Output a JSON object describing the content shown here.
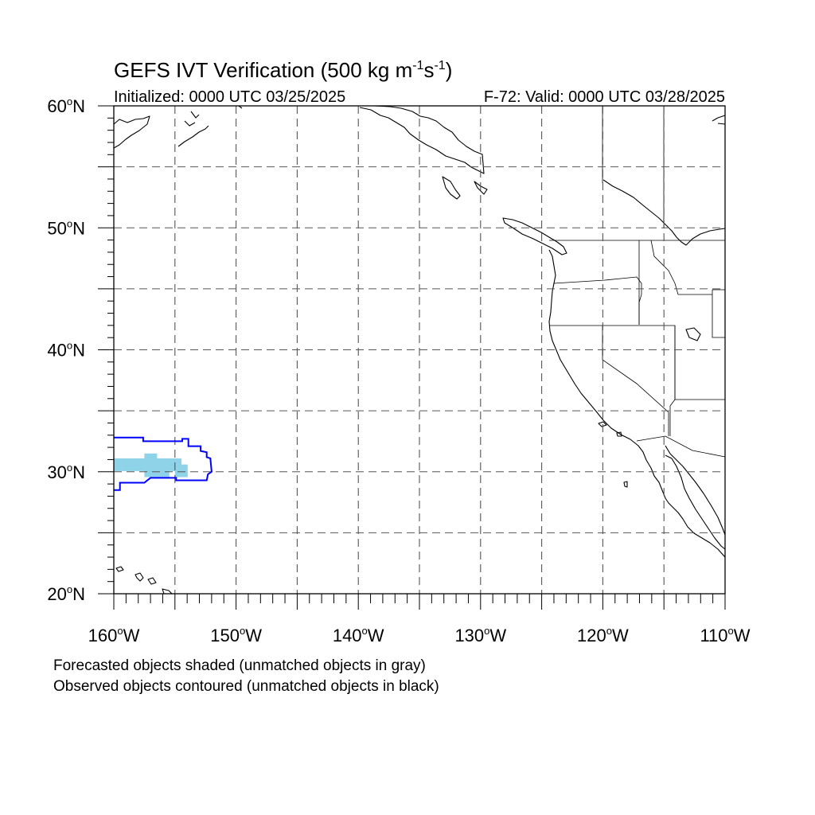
{
  "title": {
    "main": "GEFS IVT Verification (500 kg m",
    "sup1": "-1",
    "mid": "s",
    "sup2": "-1",
    "close": ")"
  },
  "subtitle": {
    "initialized": "Initialized: 0000 UTC 03/25/2025",
    "valid": "F-72: Valid: 0000 UTC 03/28/2025"
  },
  "map": {
    "projection": "cylindrical-equidistant",
    "lon_range": [
      -160,
      -110
    ],
    "lat_range": [
      20,
      60
    ],
    "grid": "dashed every 5 degrees",
    "lat_labels": [
      {
        "lat": 60,
        "num": "60",
        "deg": "o",
        "hemi": "N"
      },
      {
        "lat": 50,
        "num": "50",
        "deg": "o",
        "hemi": "N"
      },
      {
        "lat": 40,
        "num": "40",
        "deg": "o",
        "hemi": "N"
      },
      {
        "lat": 30,
        "num": "30",
        "deg": "o",
        "hemi": "N"
      },
      {
        "lat": 20,
        "num": "20",
        "deg": "o",
        "hemi": "N"
      }
    ],
    "lon_labels": [
      {
        "lon": -160,
        "num": "160",
        "deg": "o",
        "hemi": "W"
      },
      {
        "lon": -150,
        "num": "150",
        "deg": "o",
        "hemi": "W"
      },
      {
        "lon": -140,
        "num": "140",
        "deg": "o",
        "hemi": "W"
      },
      {
        "lon": -130,
        "num": "130",
        "deg": "o",
        "hemi": "W"
      },
      {
        "lon": -120,
        "num": "120",
        "deg": "o",
        "hemi": "W"
      },
      {
        "lon": -110,
        "num": "110",
        "deg": "o",
        "hemi": "W"
      }
    ],
    "forecast_object": {
      "style": "shaded",
      "color": "#8fd3e8",
      "cells": [
        {
          "lon": -160.0,
          "lat": 30.6
        },
        {
          "lon": -159.5,
          "lat": 30.6
        },
        {
          "lon": -159.0,
          "lat": 30.6
        },
        {
          "lon": -160.0,
          "lat": 30.1
        },
        {
          "lon": -159.5,
          "lat": 30.1
        },
        {
          "lon": -159.0,
          "lat": 30.1
        },
        {
          "lon": -158.5,
          "lat": 30.1
        },
        {
          "lon": -158.0,
          "lat": 30.1
        },
        {
          "lon": -157.5,
          "lat": 30.1
        },
        {
          "lon": -157.0,
          "lat": 30.1
        },
        {
          "lon": -156.5,
          "lat": 30.1
        },
        {
          "lon": -156.0,
          "lat": 30.1
        },
        {
          "lon": -155.5,
          "lat": 30.1
        },
        {
          "lon": -155.0,
          "lat": 30.1
        },
        {
          "lon": -154.5,
          "lat": 30.1
        },
        {
          "lon": -158.5,
          "lat": 30.6
        },
        {
          "lon": -158.0,
          "lat": 30.6
        },
        {
          "lon": -157.5,
          "lat": 30.6
        },
        {
          "lon": -157.0,
          "lat": 30.6
        },
        {
          "lon": -156.5,
          "lat": 30.6
        },
        {
          "lon": -156.0,
          "lat": 30.6
        },
        {
          "lon": -155.5,
          "lat": 30.6
        },
        {
          "lon": -155.0,
          "lat": 30.6
        },
        {
          "lon": -157.5,
          "lat": 31.0
        },
        {
          "lon": -157.0,
          "lat": 31.0
        },
        {
          "lon": -157.5,
          "lat": 29.6
        },
        {
          "lon": -157.0,
          "lat": 29.6
        },
        {
          "lon": -156.5,
          "lat": 29.6
        },
        {
          "lon": -156.0,
          "lat": 29.6
        },
        {
          "lon": -155.0,
          "lat": 29.6
        },
        {
          "lon": -154.5,
          "lat": 29.6
        }
      ]
    },
    "observed_object": {
      "style": "contour",
      "color": "#0000ff",
      "outline": [
        [
          -160.0,
          32.8
        ],
        [
          -157.6,
          32.8
        ],
        [
          -157.6,
          32.5
        ],
        [
          -155.0,
          32.5
        ],
        [
          -154.4,
          32.5
        ],
        [
          -154.4,
          32.7
        ],
        [
          -153.9,
          32.7
        ],
        [
          -153.9,
          32.1
        ],
        [
          -152.9,
          32.1
        ],
        [
          -152.9,
          31.7
        ],
        [
          -152.4,
          31.6
        ],
        [
          -152.4,
          31.2
        ],
        [
          -152.1,
          31.1
        ],
        [
          -152.0,
          30.0
        ],
        [
          -152.3,
          29.8
        ],
        [
          -152.4,
          29.3
        ],
        [
          -154.9,
          29.3
        ],
        [
          -154.9,
          29.5
        ],
        [
          -157.0,
          29.5
        ],
        [
          -157.5,
          29.1
        ],
        [
          -159.5,
          29.1
        ],
        [
          -159.5,
          28.5
        ],
        [
          -160.0,
          28.5
        ]
      ]
    }
  },
  "footnotes": [
    "Forecasted objects shaded (unmatched objects in gray)",
    "Observed objects contoured (unmatched objects in black)"
  ]
}
